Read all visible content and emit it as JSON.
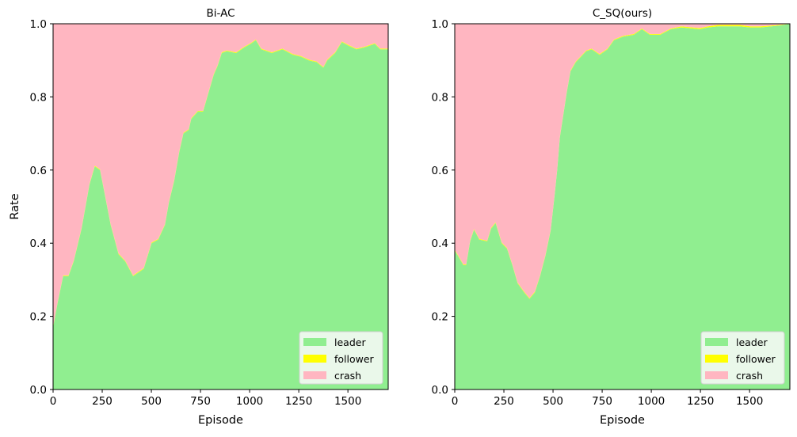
{
  "chart_data": [
    {
      "type": "area",
      "stacked": true,
      "title": "Bi-AC",
      "xlabel": "Episode",
      "ylabel": "Rate",
      "xlim": [
        0,
        1705
      ],
      "ylim": [
        0,
        1
      ],
      "xticks": [
        "0",
        "250",
        "500",
        "750",
        "1000",
        "1250",
        "1500"
      ],
      "yticks": [
        "0.0",
        "0.2",
        "0.4",
        "0.6",
        "0.8",
        "1.0"
      ],
      "grid": false,
      "legend": "lower-right",
      "x": [
        0,
        24,
        51,
        78,
        105,
        145,
        185,
        212,
        239,
        293,
        333,
        367,
        407,
        434,
        461,
        501,
        535,
        569,
        589,
        616,
        642,
        663,
        690,
        703,
        737,
        763,
        790,
        817,
        837,
        858,
        884,
        931,
        972,
        1005,
        1032,
        1059,
        1113,
        1167,
        1220,
        1261,
        1301,
        1341,
        1375,
        1395,
        1435,
        1469,
        1503,
        1543,
        1583,
        1637,
        1664,
        1705
      ],
      "series": [
        {
          "name": "leader",
          "color": "#90ee90",
          "values": [
            0.17,
            0.24,
            0.31,
            0.31,
            0.35,
            0.44,
            0.56,
            0.61,
            0.6,
            0.45,
            0.37,
            0.35,
            0.31,
            0.32,
            0.33,
            0.4,
            0.41,
            0.45,
            0.51,
            0.57,
            0.65,
            0.7,
            0.71,
            0.74,
            0.76,
            0.76,
            0.81,
            0.86,
            0.885,
            0.92,
            0.925,
            0.92,
            0.935,
            0.945,
            0.955,
            0.93,
            0.92,
            0.93,
            0.915,
            0.91,
            0.9,
            0.895,
            0.88,
            0.9,
            0.92,
            0.95,
            0.94,
            0.93,
            0.935,
            0.945,
            0.93,
            0.93
          ]
        },
        {
          "name": "follower",
          "color": "#ffff00",
          "values": [
            0.002,
            0.002,
            0.002,
            0.002,
            0.002,
            0.002,
            0.002,
            0.002,
            0.002,
            0.002,
            0.002,
            0.002,
            0.002,
            0.002,
            0.002,
            0.002,
            0.002,
            0.002,
            0.002,
            0.002,
            0.002,
            0.002,
            0.002,
            0.002,
            0.002,
            0.002,
            0.002,
            0.002,
            0.002,
            0.002,
            0.002,
            0.002,
            0.002,
            0.002,
            0.002,
            0.002,
            0.002,
            0.002,
            0.002,
            0.002,
            0.002,
            0.002,
            0.002,
            0.002,
            0.002,
            0.002,
            0.002,
            0.002,
            0.002,
            0.002,
            0.002,
            0.002
          ]
        },
        {
          "name": "crash",
          "color": "#ffb6c1",
          "values": [
            0.828,
            0.758,
            0.688,
            0.688,
            0.648,
            0.558,
            0.438,
            0.388,
            0.398,
            0.548,
            0.628,
            0.648,
            0.688,
            0.678,
            0.668,
            0.598,
            0.588,
            0.548,
            0.488,
            0.428,
            0.348,
            0.298,
            0.288,
            0.258,
            0.238,
            0.238,
            0.188,
            0.138,
            0.113,
            0.078,
            0.073,
            0.078,
            0.063,
            0.053,
            0.043,
            0.068,
            0.078,
            0.068,
            0.083,
            0.088,
            0.098,
            0.103,
            0.118,
            0.098,
            0.078,
            0.048,
            0.058,
            0.068,
            0.063,
            0.053,
            0.068,
            0.068
          ]
        }
      ]
    },
    {
      "type": "area",
      "stacked": true,
      "title": "C_SQ(ours)",
      "xlabel": "Episode",
      "ylabel": "",
      "xlim": [
        0,
        1705
      ],
      "ylim": [
        0,
        1
      ],
      "xticks": [
        "0",
        "250",
        "500",
        "750",
        "1000",
        "1250",
        "1500"
      ],
      "yticks": [
        "0.0",
        "0.2",
        "0.4",
        "0.6",
        "0.8",
        "1.0"
      ],
      "grid": false,
      "legend": "lower-right",
      "x": [
        0,
        17,
        44,
        58,
        78,
        98,
        125,
        165,
        185,
        208,
        239,
        266,
        293,
        320,
        354,
        380,
        407,
        434,
        461,
        488,
        508,
        521,
        535,
        555,
        569,
        589,
        616,
        642,
        669,
        696,
        737,
        777,
        810,
        857,
        911,
        952,
        992,
        1046,
        1099,
        1153,
        1247,
        1288,
        1341,
        1449,
        1503,
        1556,
        1651,
        1705
      ],
      "series": [
        {
          "name": "leader",
          "color": "#90ee90",
          "values": [
            0.38,
            0.365,
            0.34,
            0.34,
            0.405,
            0.437,
            0.41,
            0.405,
            0.44,
            0.455,
            0.4,
            0.385,
            0.34,
            0.29,
            0.265,
            0.248,
            0.265,
            0.31,
            0.365,
            0.435,
            0.53,
            0.6,
            0.69,
            0.76,
            0.81,
            0.87,
            0.895,
            0.91,
            0.925,
            0.93,
            0.915,
            0.93,
            0.955,
            0.965,
            0.97,
            0.985,
            0.97,
            0.97,
            0.985,
            0.99,
            0.985,
            0.99,
            0.993,
            0.993,
            0.99,
            0.99,
            0.995,
            1.0
          ]
        },
        {
          "name": "follower",
          "color": "#ffff00",
          "values": [
            0.002,
            0.002,
            0.002,
            0.002,
            0.002,
            0.002,
            0.002,
            0.002,
            0.002,
            0.002,
            0.002,
            0.002,
            0.002,
            0.002,
            0.002,
            0.002,
            0.002,
            0.002,
            0.002,
            0.002,
            0.002,
            0.002,
            0.002,
            0.002,
            0.002,
            0.002,
            0.002,
            0.002,
            0.002,
            0.002,
            0.002,
            0.002,
            0.002,
            0.002,
            0.002,
            0.002,
            0.002,
            0.002,
            0.002,
            0.003,
            0.003,
            0.003,
            0.004,
            0.004,
            0.003,
            0.003,
            0.002,
            0.0
          ]
        },
        {
          "name": "crash",
          "color": "#ffb6c1",
          "values": [
            0.618,
            0.633,
            0.658,
            0.658,
            0.593,
            0.561,
            0.588,
            0.593,
            0.558,
            0.543,
            0.598,
            0.613,
            0.658,
            0.708,
            0.733,
            0.75,
            0.733,
            0.688,
            0.633,
            0.563,
            0.468,
            0.398,
            0.308,
            0.238,
            0.188,
            0.128,
            0.103,
            0.088,
            0.073,
            0.068,
            0.083,
            0.068,
            0.043,
            0.033,
            0.028,
            0.013,
            0.028,
            0.028,
            0.013,
            0.007,
            0.012,
            0.007,
            0.003,
            0.003,
            0.007,
            0.007,
            0.003,
            0.0
          ]
        }
      ]
    }
  ]
}
